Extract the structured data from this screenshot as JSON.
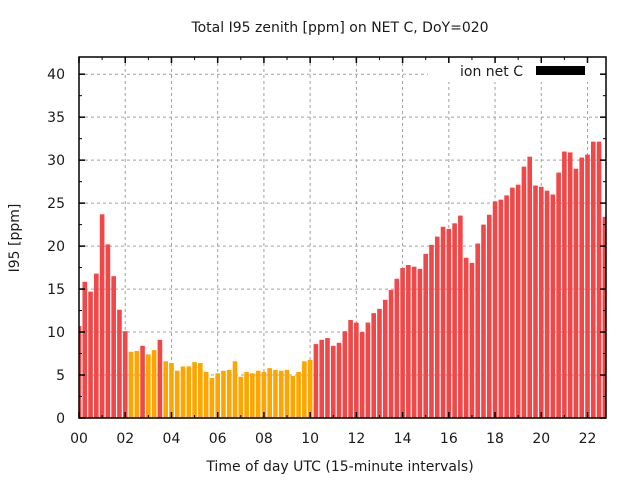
{
  "chart_data": {
    "type": "bar",
    "title": "Total I95 zenith [ppm] on NET C, DoY=020",
    "xlabel": "Time of day UTC (15-minute intervals)",
    "ylabel": "I95 [ppm]",
    "xlim": [
      0,
      22.8
    ],
    "ylim": [
      0,
      42
    ],
    "yticks": [
      0,
      5,
      10,
      15,
      20,
      25,
      30,
      35,
      40
    ],
    "xticks": [
      0,
      2,
      4,
      6,
      8,
      10,
      12,
      14,
      16,
      18,
      20,
      22
    ],
    "xtick_labels": [
      "00",
      "02",
      "04",
      "06",
      "08",
      "10",
      "12",
      "14",
      "16",
      "18",
      "20",
      "22"
    ],
    "grid": true,
    "interval_hours": 0.25,
    "legend": {
      "position": "top-right",
      "entries": [
        {
          "label": "ion net C",
          "color": "#000000"
        }
      ]
    },
    "colors": {
      "high": "#F04848",
      "low": "#FFA500"
    },
    "series": [
      {
        "name": "ion net C",
        "x_hours_start": 0,
        "values": [
          10.7,
          15.85,
          14.7,
          16.8,
          23.7,
          20.2,
          16.5,
          12.6,
          10.1,
          7.7,
          7.8,
          8.4,
          7.4,
          7.9,
          9.1,
          6.6,
          6.4,
          5.5,
          6.0,
          6.0,
          6.5,
          6.4,
          5.35,
          4.65,
          5.2,
          5.5,
          5.6,
          6.6,
          4.8,
          5.35,
          5.2,
          5.5,
          5.35,
          5.8,
          5.6,
          5.5,
          5.6,
          4.9,
          5.35,
          6.6,
          6.75,
          8.6,
          9.1,
          9.3,
          8.4,
          8.75,
          10.1,
          11.4,
          11.1,
          10.0,
          11.1,
          12.2,
          12.7,
          13.75,
          14.9,
          16.2,
          17.45,
          17.8,
          17.6,
          17.35,
          19.1,
          20.15,
          21.1,
          22.25,
          22.0,
          22.65,
          23.55,
          18.65,
          18.05,
          20.3,
          22.5,
          23.65,
          25.2,
          25.4,
          25.9,
          26.8,
          27.15,
          29.25,
          30.4,
          27.05,
          26.9,
          26.45,
          26.0,
          28.55,
          31.0,
          30.9,
          29.0,
          30.3,
          30.65,
          32.15,
          32.15,
          23.4
        ],
        "color_class": [
          "high",
          "high",
          "high",
          "high",
          "high",
          "high",
          "high",
          "high",
          "high",
          "low",
          "low",
          "high",
          "low",
          "low",
          "high",
          "low",
          "low",
          "low",
          "low",
          "low",
          "low",
          "low",
          "low",
          "low",
          "low",
          "low",
          "low",
          "low",
          "low",
          "low",
          "low",
          "low",
          "low",
          "low",
          "low",
          "low",
          "low",
          "low",
          "low",
          "low",
          "low",
          "high",
          "high",
          "high",
          "high",
          "high",
          "high",
          "high",
          "high",
          "high",
          "high",
          "high",
          "high",
          "high",
          "high",
          "high",
          "high",
          "high",
          "high",
          "high",
          "high",
          "high",
          "high",
          "high",
          "high",
          "high",
          "high",
          "high",
          "high",
          "high",
          "high",
          "high",
          "high",
          "high",
          "high",
          "high",
          "high",
          "high",
          "high",
          "high",
          "high",
          "high",
          "high",
          "high",
          "high",
          "high",
          "high",
          "high",
          "high",
          "high",
          "high",
          "high"
        ]
      }
    ]
  }
}
